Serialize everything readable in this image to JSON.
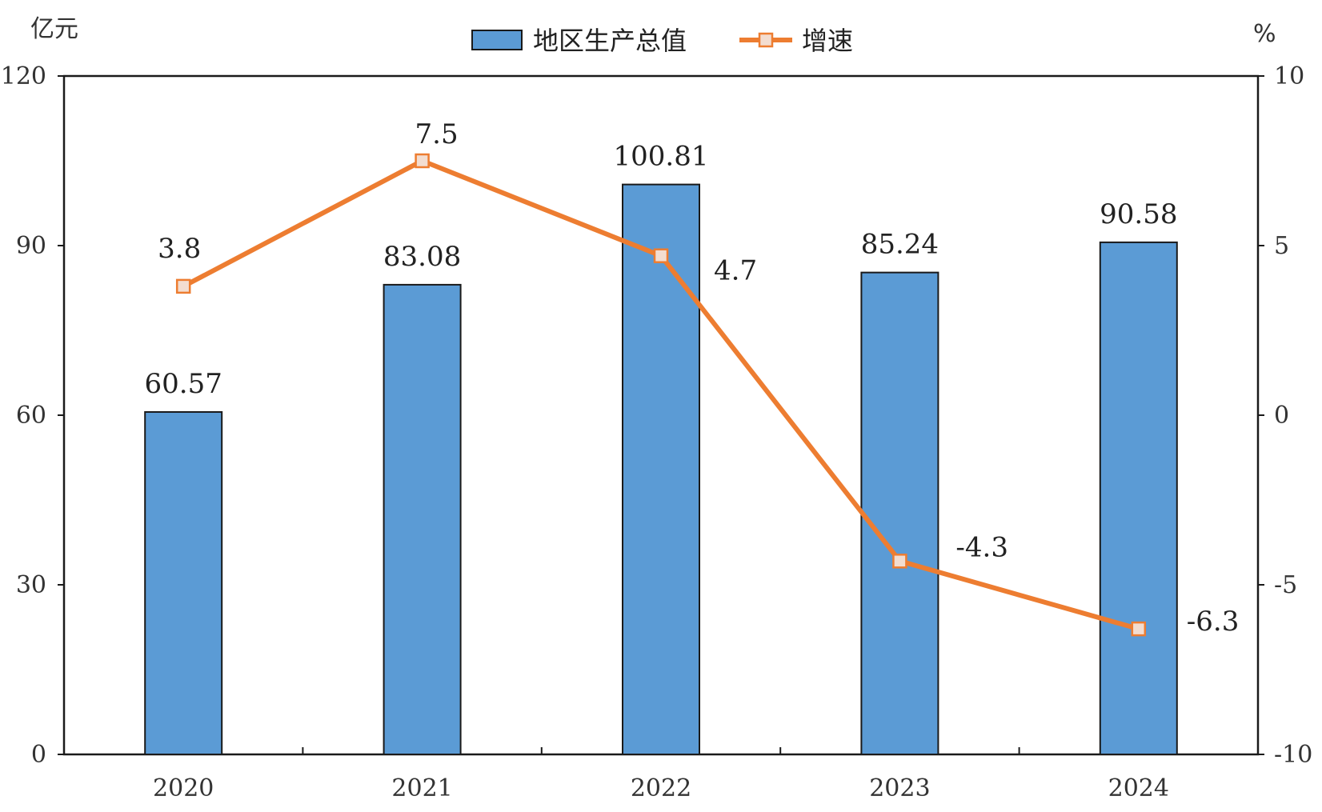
{
  "chart_data": {
    "type": "bar+line",
    "title": "",
    "categories": [
      "2020",
      "2021",
      "2022",
      "2023",
      "2024"
    ],
    "series": [
      {
        "name": "地区生产总值",
        "type": "bar",
        "axis": "left",
        "values": [
          60.57,
          83.08,
          100.81,
          85.24,
          90.58
        ],
        "labels": [
          "60.57",
          "83.08",
          "100.81",
          "85.24",
          "90.58"
        ],
        "color": "#5b9bd5"
      },
      {
        "name": "增速",
        "type": "line",
        "axis": "right",
        "values": [
          3.8,
          7.5,
          4.7,
          -4.3,
          -6.3
        ],
        "labels": [
          "3.8",
          "7.5",
          "4.7",
          "-4.3",
          "-6.3"
        ],
        "color": "#ed7d31"
      }
    ],
    "y_left": {
      "unit": "亿元",
      "ylim": [
        0,
        120
      ],
      "ticks": [
        0,
        30,
        60,
        90,
        120
      ],
      "tick_labels": [
        "0",
        "30",
        "60",
        "90",
        "120"
      ]
    },
    "y_right": {
      "unit": "%",
      "ylim": [
        -10,
        10
      ],
      "ticks": [
        -10,
        -5,
        0,
        5,
        10
      ],
      "tick_labels": [
        "-10",
        "-5",
        "0",
        "5",
        "10"
      ]
    },
    "grid": false,
    "legend_position": "top-center"
  }
}
